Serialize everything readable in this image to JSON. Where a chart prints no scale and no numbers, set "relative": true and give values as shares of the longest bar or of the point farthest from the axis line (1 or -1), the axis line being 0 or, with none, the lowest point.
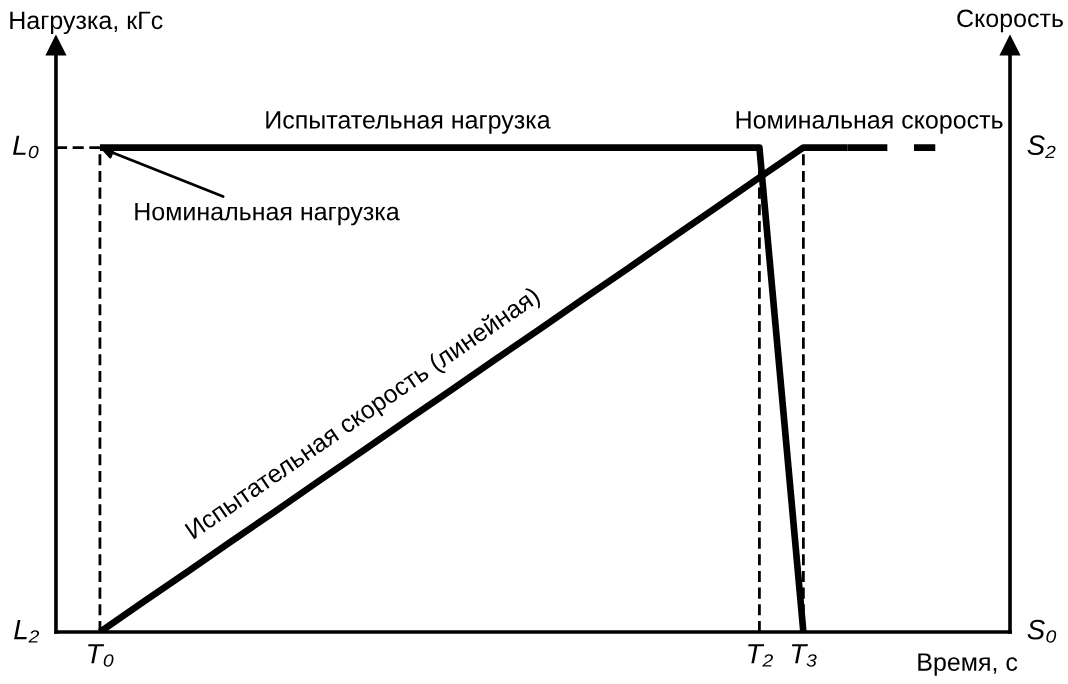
{
  "chart_data": {
    "type": "line",
    "relative": true,
    "xlabel": "Время, с",
    "ylabel": "Нагрузка, кГс",
    "y2label": "Скорость",
    "categories": [
      null,
      "T₀",
      null,
      null,
      null,
      null,
      null,
      null,
      null,
      null,
      null,
      null,
      null,
      null,
      null,
      null,
      "T₂",
      "T₃",
      null,
      null,
      null,
      null
    ],
    "series": [
      {
        "name": "Испытательная нагрузка",
        "color": "#000000",
        "values": [
          null,
          1,
          1,
          1,
          1,
          1,
          1,
          1,
          1,
          1,
          1,
          1,
          1,
          1,
          1,
          1,
          1,
          0,
          null,
          null,
          null,
          null
        ]
      },
      {
        "name": "Испытательная скорость (линейная)",
        "color": "#000000",
        "values": [
          null,
          0,
          0.063,
          0.125,
          0.188,
          0.25,
          0.313,
          0.375,
          0.438,
          0.5,
          0.563,
          0.625,
          0.688,
          0.75,
          0.813,
          0.875,
          0.938,
          1,
          1,
          null,
          null,
          null
        ]
      },
      {
        "name": "Номинальная скорость",
        "color": "#000000",
        "line_style": "dashed",
        "values": [
          null,
          null,
          null,
          null,
          null,
          null,
          null,
          null,
          null,
          null,
          null,
          null,
          null,
          null,
          null,
          null,
          null,
          null,
          1,
          1,
          1,
          null
        ]
      },
      {
        "color": "#000000",
        "line_style": "dashed",
        "values": [
          1,
          1,
          null,
          null,
          null,
          null,
          null,
          null,
          null,
          null,
          null,
          null,
          null,
          null,
          null,
          null,
          null,
          null,
          null,
          null,
          null,
          null
        ]
      }
    ],
    "ref_lines": [
      {
        "axis": "x",
        "value": "T₀",
        "line_style": "dashed",
        "color": "#000000"
      },
      {
        "axis": "x",
        "value": "T₂",
        "line_style": "dashed",
        "color": "#000000"
      },
      {
        "axis": "x",
        "value": "T₃",
        "line_style": "dashed",
        "color": "#000000"
      }
    ],
    "annotations": [
      {
        "text": "Номинальная нагрузка",
        "x": "T₀",
        "y": 1
      },
      "L₀",
      "L₂",
      "S₂",
      "S₀"
    ],
    "legend": false,
    "marker": "none",
    "line_style": "solid"
  }
}
